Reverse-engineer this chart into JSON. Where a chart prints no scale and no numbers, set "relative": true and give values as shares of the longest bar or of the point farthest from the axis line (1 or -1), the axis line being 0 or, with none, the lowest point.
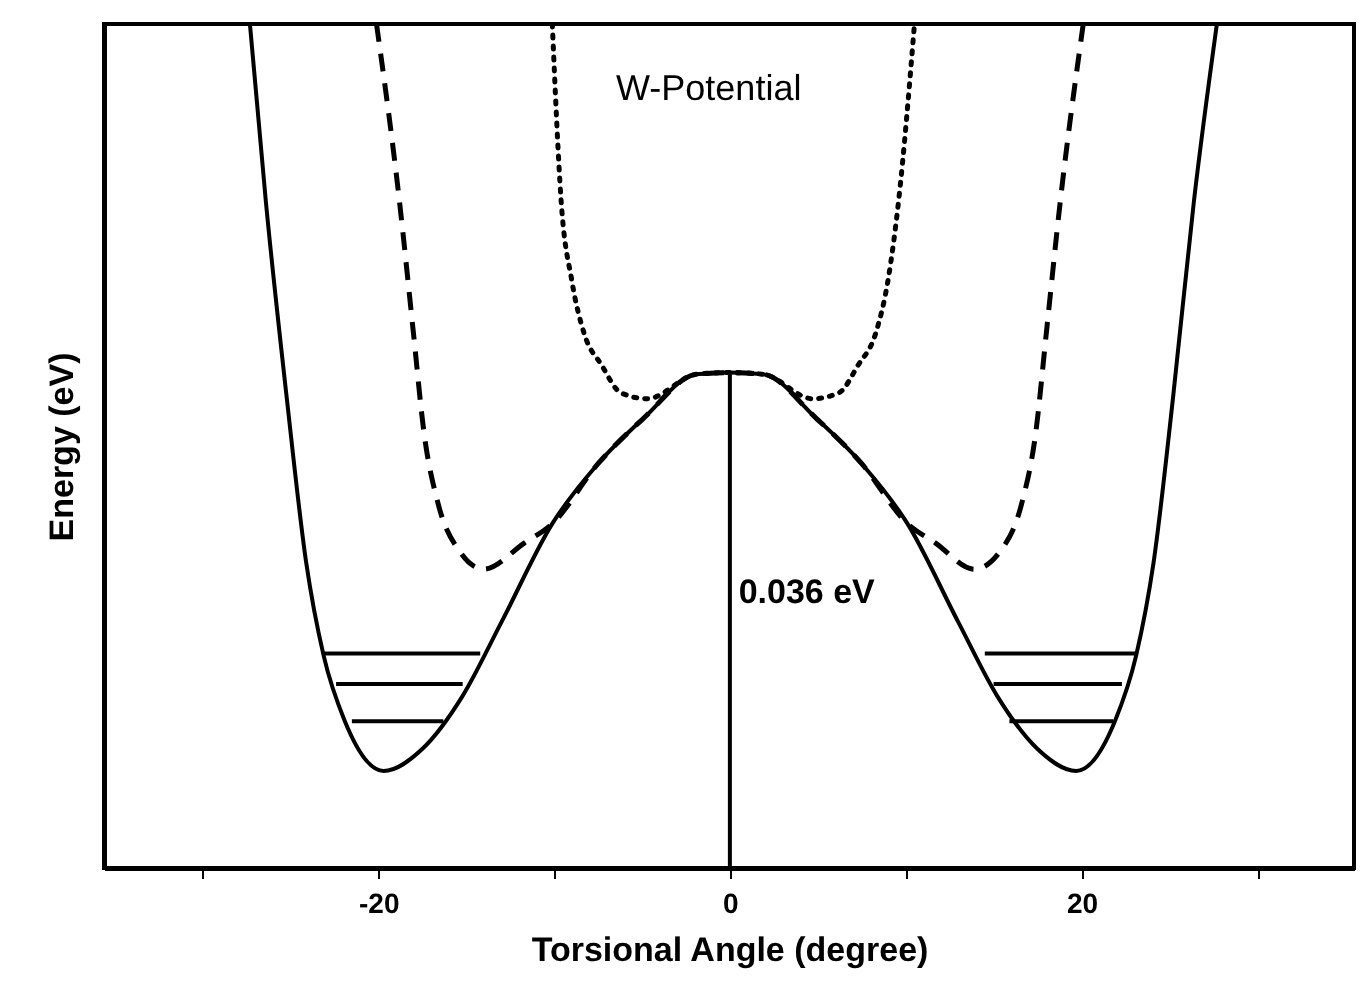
{
  "chart_data": {
    "type": "line",
    "xlabel": "Torsional Angle (degree)",
    "ylabel": "Energy  (eV)",
    "relative": true,
    "tick_labels": "x",
    "grid": false,
    "xlim": [
      -35.6,
      35.5
    ],
    "xticks": [
      {
        "value": -30,
        "label": null
      },
      -20,
      {
        "value": -10,
        "label": null
      },
      0,
      {
        "value": 10,
        "label": null
      },
      20,
      {
        "value": 30,
        "label": null
      }
    ],
    "annotations": [
      "W-Potential",
      {
        "text": "0.036 eV",
        "x": 0.5,
        "y": 0.326
      }
    ],
    "series": [
      {
        "color": "#000000",
        "line_style": "solid",
        "x": [
          -27.3,
          -26.4,
          -25.2,
          -24.1,
          -23.1,
          -21.9,
          -19.7,
          -17.5,
          -15.2,
          -13.0,
          -10.1,
          -7.5,
          -4.9,
          -1.9,
          0,
          1.9,
          4.9,
          7.5,
          10.1,
          13.0,
          15.2,
          17.5,
          19.7,
          21.9,
          23.1,
          24.1,
          25.2,
          26.4,
          27.7
        ],
        "values": [
          1,
          0.791,
          0.556,
          0.362,
          0.251,
          0.174,
          0.115,
          0.141,
          0.204,
          0.291,
          0.408,
          0.479,
          0.533,
          0.585,
          0.587,
          0.585,
          0.533,
          0.479,
          0.408,
          0.291,
          0.204,
          0.141,
          0.115,
          0.174,
          0.251,
          0.362,
          0.556,
          0.791,
          1
        ]
      },
      {
        "color": "#000000",
        "line_style": "dashed",
        "x": [
          -20.1,
          -18.8,
          -18.0,
          -17.4,
          -16.6,
          -15.4,
          -14.0,
          -11.7,
          -10.1,
          -7.5,
          -4.9,
          -1.9,
          0,
          1.9,
          4.9,
          7.5,
          10.1,
          11.7,
          13.9,
          15.4,
          16.6,
          17.4,
          18.0,
          18.8,
          20.1
        ],
        "values": [
          1,
          0.791,
          0.634,
          0.516,
          0.432,
          0.376,
          0.354,
          0.385,
          0.408,
          0.479,
          0.533,
          0.585,
          0.587,
          0.585,
          0.533,
          0.479,
          0.408,
          0.385,
          0.354,
          0.376,
          0.432,
          0.516,
          0.634,
          0.791,
          1
        ]
      },
      {
        "color": "#000000",
        "line_style": "dotted",
        "x": [
          -10.1,
          -9.6,
          -9.0,
          -8.3,
          -7.3,
          -6.2,
          -4.7,
          -1.9,
          0,
          1.9,
          4.7,
          6.2,
          7.3,
          8.3,
          9.0,
          9.6,
          10.5
        ],
        "values": [
          1,
          0.791,
          0.697,
          0.634,
          0.596,
          0.563,
          0.556,
          0.585,
          0.587,
          0.585,
          0.556,
          0.563,
          0.596,
          0.634,
          0.697,
          0.791,
          1
        ]
      },
      {
        "color": "#000000",
        "line_style": "solid",
        "x": [
          -23.2,
          -14.2
        ],
        "values": [
          0.254,
          0.254
        ]
      },
      {
        "color": "#000000",
        "line_style": "solid",
        "x": [
          -22.4,
          -15.2
        ],
        "values": [
          0.218,
          0.218
        ]
      },
      {
        "color": "#000000",
        "line_style": "solid",
        "x": [
          -21.5,
          -16.3
        ],
        "values": [
          0.174,
          0.174
        ]
      },
      {
        "color": "#000000",
        "line_style": "solid",
        "x": [
          14.5,
          23.1
        ],
        "values": [
          0.254,
          0.254
        ]
      },
      {
        "color": "#000000",
        "line_style": "solid",
        "x": [
          15.0,
          22.3
        ],
        "values": [
          0.218,
          0.218
        ]
      },
      {
        "color": "#000000",
        "line_style": "solid",
        "x": [
          15.9,
          21.8
        ],
        "values": [
          0.174,
          0.174
        ]
      },
      {
        "color": "#000000",
        "line_style": "solid",
        "x": [
          0,
          0
        ],
        "values": [
          0,
          0.587
        ]
      }
    ]
  }
}
